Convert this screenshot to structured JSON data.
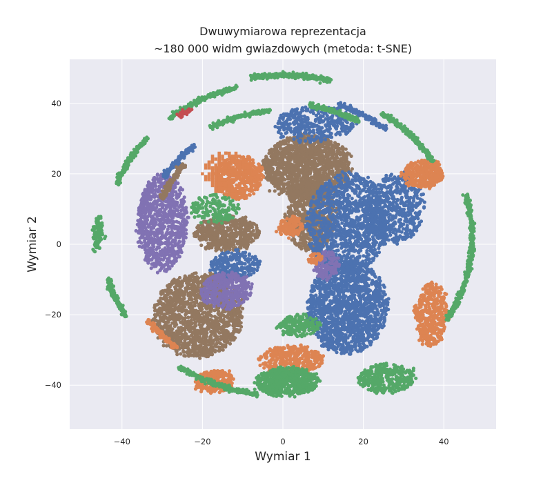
{
  "chart_data": {
    "type": "scatter",
    "title_line1": "Dwuwymiarowa reprezentacja",
    "title_line2": "~180 000 widm gwiazdowych (metoda: t-SNE)",
    "xlabel": "Wymiar 1",
    "ylabel": "Wymiar 2",
    "xlim": [
      -53,
      53
    ],
    "ylim": [
      -52.5,
      52.5
    ],
    "xticks": [
      -40,
      -20,
      0,
      20,
      40
    ],
    "yticks": [
      -40,
      -20,
      0,
      20,
      40
    ],
    "xtick_labels": [
      "−40",
      "−20",
      "0",
      "20",
      "40"
    ],
    "ytick_labels": [
      "−40",
      "−20",
      "0",
      "20",
      "40"
    ],
    "grid": true,
    "background_color": "#eaeaf2",
    "colors": [
      "#4c72b0",
      "#dd8452",
      "#55a868",
      "#c44e52",
      "#8172b3",
      "#937860"
    ],
    "clusters": [
      {
        "color": 5,
        "cx": 6,
        "cy": 22,
        "rx": 11,
        "ry": 9,
        "n": 1400
      },
      {
        "color": 5,
        "cx": -21,
        "cy": -20,
        "rx": 11,
        "ry": 12,
        "n": 1500
      },
      {
        "color": 5,
        "cx": 7,
        "cy": 8,
        "rx": 6,
        "ry": 10,
        "n": 700
      },
      {
        "color": 5,
        "cx": -14,
        "cy": 3,
        "rx": 8,
        "ry": 5,
        "n": 500
      },
      {
        "color": 0,
        "cx": 16,
        "cy": -18,
        "rx": 10,
        "ry": 13,
        "n": 1500
      },
      {
        "color": 0,
        "cx": 16,
        "cy": 6,
        "rx": 10,
        "ry": 14,
        "n": 1200
      },
      {
        "color": 0,
        "cx": 28,
        "cy": 10,
        "rx": 7,
        "ry": 10,
        "n": 500
      },
      {
        "color": 0,
        "cx": -12,
        "cy": -6,
        "rx": 6,
        "ry": 4,
        "n": 250
      },
      {
        "color": 0,
        "cx": 8,
        "cy": 34,
        "rx": 10,
        "ry": 5,
        "n": 350
      },
      {
        "color": 4,
        "cx": -30,
        "cy": 6,
        "rx": 6,
        "ry": 14,
        "n": 900
      },
      {
        "color": 4,
        "cx": -14,
        "cy": -13,
        "rx": 6,
        "ry": 5,
        "n": 400
      },
      {
        "color": 4,
        "cx": 11,
        "cy": -6,
        "rx": 3,
        "ry": 4,
        "n": 150
      },
      {
        "color": 1,
        "cx": -11,
        "cy": 19,
        "rx": 6,
        "ry": 6,
        "n": 450
      },
      {
        "color": 1,
        "cx": 35,
        "cy": 20,
        "rx": 5,
        "ry": 4,
        "n": 350
      },
      {
        "color": 1,
        "cx": 37,
        "cy": -20,
        "rx": 4,
        "ry": 9,
        "n": 400
      },
      {
        "color": 1,
        "cx": 2,
        "cy": -33,
        "rx": 8,
        "ry": 4,
        "n": 400
      },
      {
        "color": 1,
        "cx": -17,
        "cy": -39,
        "rx": 5,
        "ry": 3,
        "n": 250
      },
      {
        "color": 1,
        "cx": 2,
        "cy": 5,
        "rx": 3,
        "ry": 2.5,
        "n": 120
      },
      {
        "color": 1,
        "cx": 8,
        "cy": -4,
        "rx": 1.5,
        "ry": 1.5,
        "n": 40
      },
      {
        "color": 2,
        "cx": 1,
        "cy": -39,
        "rx": 8,
        "ry": 4,
        "n": 600
      },
      {
        "color": 2,
        "cx": 26,
        "cy": -38,
        "rx": 7,
        "ry": 4,
        "n": 350
      },
      {
        "color": 2,
        "cx": 4,
        "cy": -23,
        "rx": 5,
        "ry": 3,
        "n": 180
      },
      {
        "color": 2,
        "cx": -17,
        "cy": 10,
        "rx": 6,
        "ry": 4,
        "n": 150
      },
      {
        "color": 2,
        "cx": -46,
        "cy": 3,
        "rx": 1,
        "ry": 5,
        "n": 100
      }
    ],
    "arcs": [
      {
        "color": 2,
        "cx": 0,
        "cy": 2,
        "r": 46,
        "a0": 75,
        "a1": 100,
        "n": 220
      },
      {
        "color": 2,
        "cx": 0,
        "cy": 2,
        "r": 44,
        "a0": 105,
        "a1": 130,
        "n": 200
      },
      {
        "color": 2,
        "cx": 0,
        "cy": 2,
        "r": 43,
        "a0": 30,
        "a1": 55,
        "n": 200
      },
      {
        "color": 2,
        "cx": 0,
        "cy": 2,
        "r": 47,
        "a0": -30,
        "a1": 15,
        "n": 320
      },
      {
        "color": 2,
        "cx": 0,
        "cy": 2,
        "r": 44,
        "a0": 140,
        "a1": 160,
        "n": 150
      },
      {
        "color": 2,
        "cx": 0,
        "cy": 2,
        "r": 45,
        "a0": 195,
        "a1": 210,
        "n": 120
      },
      {
        "color": 2,
        "cx": 0,
        "cy": 2,
        "r": 45,
        "a0": 235,
        "a1": 262,
        "n": 220
      },
      {
        "color": 2,
        "cx": 0,
        "cy": 2,
        "r": 38,
        "a0": 60,
        "a1": 80,
        "n": 150
      },
      {
        "color": 2,
        "cx": 0,
        "cy": 2,
        "r": 36,
        "a0": 95,
        "a1": 120,
        "n": 150
      },
      {
        "color": 0,
        "cx": 0,
        "cy": 2,
        "r": 40,
        "a0": 50,
        "a1": 70,
        "n": 140
      },
      {
        "color": 0,
        "cx": 0,
        "cy": 2,
        "r": 34,
        "a0": 130,
        "a1": 150,
        "n": 120
      },
      {
        "color": 5,
        "cx": 0,
        "cy": 2,
        "r": 32,
        "a0": 140,
        "a1": 160,
        "n": 120
      },
      {
        "color": 1,
        "cx": 0,
        "cy": 2,
        "r": 41,
        "a0": 215,
        "a1": 230,
        "n": 100
      },
      {
        "color": 4,
        "cx": 0,
        "cy": 2,
        "r": 36,
        "a0": 155,
        "a1": 170,
        "n": 100
      },
      {
        "color": 3,
        "cx": 0,
        "cy": 2,
        "r": 43,
        "a0": 122,
        "a1": 127,
        "n": 30
      }
    ],
    "ring_clusters": [
      {
        "color": 1,
        "cx": -14,
        "cy": 20,
        "r": 6,
        "n": 160
      }
    ]
  }
}
